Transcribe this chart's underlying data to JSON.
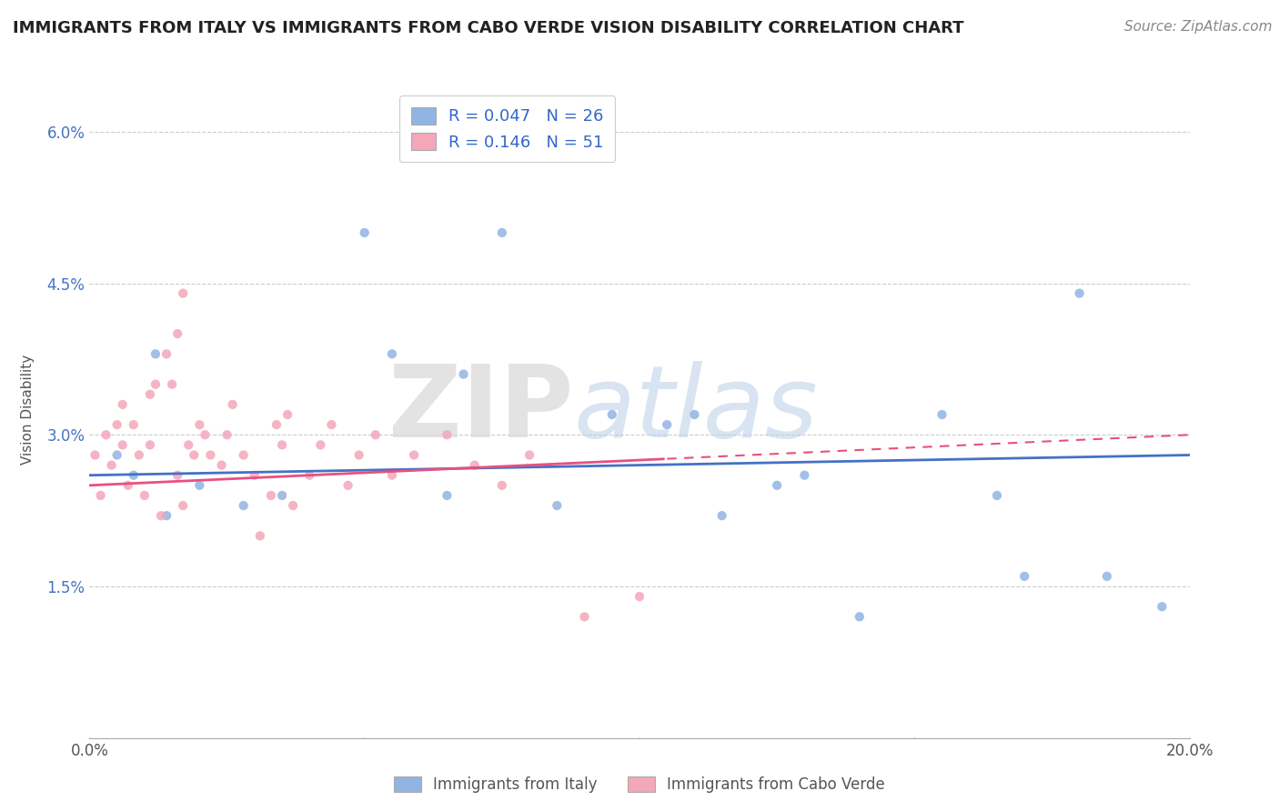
{
  "title": "IMMIGRANTS FROM ITALY VS IMMIGRANTS FROM CABO VERDE VISION DISABILITY CORRELATION CHART",
  "source": "Source: ZipAtlas.com",
  "ylabel": "Vision Disability",
  "xlim": [
    0.0,
    0.2
  ],
  "ylim": [
    0.0,
    0.065
  ],
  "xticks": [
    0.0,
    0.05,
    0.1,
    0.15,
    0.2
  ],
  "xticklabels": [
    "0.0%",
    "",
    "",
    "",
    "20.0%"
  ],
  "yticks": [
    0.0,
    0.015,
    0.03,
    0.045,
    0.06
  ],
  "yticklabels": [
    "",
    "1.5%",
    "3.0%",
    "4.5%",
    "6.0%"
  ],
  "legend_r1": "R = 0.047",
  "legend_n1": "N = 26",
  "legend_r2": "R = 0.146",
  "legend_n2": "N = 51",
  "color_italy": "#92b4e3",
  "color_cabo": "#f4a7b9",
  "trendline_italy": "#4472c4",
  "trendline_cabo": "#e85080",
  "background": "#ffffff",
  "italy_x": [
    0.005,
    0.008,
    0.012,
    0.014,
    0.02,
    0.028,
    0.035,
    0.05,
    0.055,
    0.065,
    0.068,
    0.075,
    0.085,
    0.095,
    0.105,
    0.11,
    0.115,
    0.125,
    0.13,
    0.14,
    0.155,
    0.165,
    0.17,
    0.18,
    0.185,
    0.195
  ],
  "italy_y": [
    0.028,
    0.026,
    0.038,
    0.022,
    0.025,
    0.023,
    0.024,
    0.05,
    0.038,
    0.024,
    0.036,
    0.05,
    0.023,
    0.032,
    0.031,
    0.032,
    0.022,
    0.025,
    0.026,
    0.012,
    0.032,
    0.024,
    0.016,
    0.044,
    0.016,
    0.013
  ],
  "cabo_x": [
    0.001,
    0.002,
    0.003,
    0.004,
    0.005,
    0.006,
    0.006,
    0.007,
    0.008,
    0.009,
    0.01,
    0.011,
    0.011,
    0.012,
    0.013,
    0.014,
    0.015,
    0.016,
    0.016,
    0.017,
    0.017,
    0.018,
    0.019,
    0.02,
    0.021,
    0.022,
    0.024,
    0.025,
    0.026,
    0.028,
    0.03,
    0.031,
    0.033,
    0.034,
    0.035,
    0.036,
    0.037,
    0.04,
    0.042,
    0.044,
    0.047,
    0.049,
    0.052,
    0.055,
    0.059,
    0.065,
    0.07,
    0.075,
    0.08,
    0.09,
    0.1
  ],
  "cabo_y": [
    0.028,
    0.024,
    0.03,
    0.027,
    0.031,
    0.029,
    0.033,
    0.025,
    0.031,
    0.028,
    0.024,
    0.034,
    0.029,
    0.035,
    0.022,
    0.038,
    0.035,
    0.04,
    0.026,
    0.044,
    0.023,
    0.029,
    0.028,
    0.031,
    0.03,
    0.028,
    0.027,
    0.03,
    0.033,
    0.028,
    0.026,
    0.02,
    0.024,
    0.031,
    0.029,
    0.032,
    0.023,
    0.026,
    0.029,
    0.031,
    0.025,
    0.028,
    0.03,
    0.026,
    0.028,
    0.03,
    0.027,
    0.025,
    0.028,
    0.012,
    0.014
  ]
}
